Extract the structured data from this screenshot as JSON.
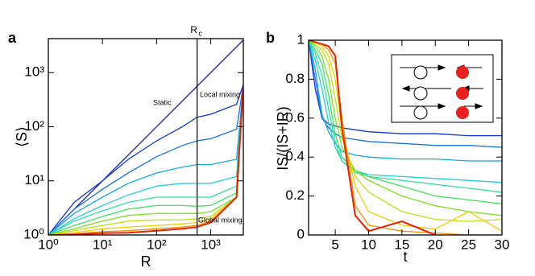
{
  "chart_data": [
    {
      "type": "line",
      "panel_label": "a",
      "xlabel": "R",
      "ylabel": "⟨S⟩",
      "xlog": true,
      "ylog": true,
      "xlim": [
        1,
        4000
      ],
      "ylim": [
        1,
        4250
      ],
      "xticks": [
        {
          "value": 1,
          "label": "10⁰"
        },
        {
          "value": 10,
          "label": "10¹"
        },
        {
          "value": 100,
          "label": "10²"
        },
        {
          "value": 1000,
          "label": "10³"
        }
      ],
      "yticks": [
        {
          "value": 1,
          "label": "10⁰"
        },
        {
          "value": 10,
          "label": "10¹"
        },
        {
          "value": 100,
          "label": "10²"
        },
        {
          "value": 1000,
          "label": "10³"
        }
      ],
      "vline": {
        "x": 560,
        "label": "R",
        "subscript": "c"
      },
      "annotations": [
        "Static",
        "Local mixing",
        "Global mixing"
      ],
      "x": [
        1,
        3,
        10,
        30,
        100,
        300,
        560,
        1000,
        3000,
        4000
      ],
      "series": [
        {
          "color": "#1c1ca8",
          "x": [
            1,
            4000
          ],
          "values": [
            1,
            4000
          ]
        },
        {
          "color": "#1034e0",
          "values": [
            1,
            4,
            10,
            25,
            55,
            100,
            150,
            170,
            260,
            600
          ]
        },
        {
          "color": "#1a70e8",
          "values": [
            1,
            3,
            7,
            14,
            28,
            45,
            55,
            60,
            90,
            600
          ]
        },
        {
          "color": "#10a8e8",
          "values": [
            1,
            2.5,
            5,
            9,
            14,
            18,
            20,
            20,
            25,
            600
          ]
        },
        {
          "color": "#20d0d0",
          "values": [
            1,
            2,
            3.5,
            5.5,
            8,
            9,
            9,
            9,
            12,
            600
          ]
        },
        {
          "color": "#30e0a0",
          "values": [
            1,
            1.8,
            2.8,
            4,
            5,
            5,
            5,
            5,
            8,
            600
          ]
        },
        {
          "color": "#40e060",
          "values": [
            1,
            1.5,
            2.2,
            3,
            3.5,
            3.5,
            3.4,
            3.5,
            6,
            600
          ]
        },
        {
          "color": "#80e020",
          "values": [
            1,
            1.3,
            1.8,
            2.3,
            2.5,
            2.5,
            2.5,
            2.7,
            5,
            600
          ]
        },
        {
          "color": "#c0e010",
          "values": [
            1,
            1.2,
            1.5,
            1.8,
            1.9,
            1.9,
            2,
            2.2,
            5,
            600
          ]
        },
        {
          "color": "#f0d000",
          "values": [
            1,
            1.1,
            1.3,
            1.4,
            1.5,
            1.6,
            1.7,
            2,
            5,
            600
          ]
        },
        {
          "color": "#f09000",
          "values": [
            1,
            1.05,
            1.15,
            1.2,
            1.3,
            1.4,
            1.5,
            1.8,
            5,
            600
          ]
        },
        {
          "color": "#e82000",
          "values": [
            1,
            1.02,
            1.08,
            1.1,
            1.2,
            1.3,
            1.4,
            1.7,
            5,
            600
          ]
        }
      ]
    },
    {
      "type": "line",
      "panel_label": "b",
      "xlabel": "t",
      "ylabel": "IS/(IS+IR)",
      "xlog": false,
      "ylog": false,
      "xlim": [
        1,
        30
      ],
      "ylim": [
        0,
        1
      ],
      "xticks": [
        5,
        10,
        15,
        20,
        25,
        30
      ],
      "yticks": [
        0,
        0.2,
        0.4,
        0.6,
        0.8,
        1
      ],
      "x": [
        1,
        2,
        3,
        4,
        5,
        6,
        8,
        10,
        15,
        20,
        25,
        30
      ],
      "series": [
        {
          "color": "#1034e0",
          "values": [
            1,
            0.75,
            0.6,
            0.57,
            0.56,
            0.55,
            0.54,
            0.53,
            0.52,
            0.52,
            0.51,
            0.51
          ]
        },
        {
          "color": "#1a70e8",
          "values": [
            1,
            0.8,
            0.6,
            0.55,
            0.52,
            0.5,
            0.49,
            0.48,
            0.47,
            0.46,
            0.46,
            0.45
          ]
        },
        {
          "color": "#10a8e8",
          "values": [
            1,
            0.85,
            0.62,
            0.53,
            0.47,
            0.43,
            0.41,
            0.4,
            0.39,
            0.39,
            0.38,
            0.38
          ]
        },
        {
          "color": "#20d0d0",
          "values": [
            1,
            0.9,
            0.75,
            0.58,
            0.45,
            0.38,
            0.33,
            0.31,
            0.3,
            0.29,
            0.28,
            0.27
          ]
        },
        {
          "color": "#30e0a0",
          "values": [
            1,
            0.93,
            0.82,
            0.65,
            0.48,
            0.38,
            0.32,
            0.3,
            0.28,
            0.26,
            0.24,
            0.22
          ]
        },
        {
          "color": "#40e060",
          "values": [
            1,
            0.95,
            0.88,
            0.72,
            0.52,
            0.4,
            0.33,
            0.3,
            0.25,
            0.2,
            0.18,
            0.16
          ]
        },
        {
          "color": "#80e020",
          "values": [
            1,
            0.97,
            0.92,
            0.8,
            0.6,
            0.45,
            0.33,
            0.28,
            0.2,
            0.15,
            0.12,
            0.1
          ]
        },
        {
          "color": "#c0e010",
          "values": [
            1,
            0.98,
            0.95,
            0.88,
            0.7,
            0.5,
            0.3,
            0.22,
            0.12,
            0.08,
            0.07,
            0.08
          ]
        },
        {
          "color": "#f0d000",
          "values": [
            1,
            0.99,
            0.97,
            0.92,
            0.8,
            0.55,
            0.25,
            0.12,
            0.05,
            0.03,
            0.12,
            0.02
          ]
        },
        {
          "color": "#f09000",
          "values": [
            1,
            0.99,
            0.98,
            0.95,
            0.88,
            0.6,
            0.15,
            0.05,
            0.02,
            0.01,
            0,
            0
          ]
        },
        {
          "color": "#e82000",
          "values": [
            1,
            0.99,
            0.98,
            0.97,
            0.92,
            0.55,
            0.1,
            0.02,
            0.07,
            0,
            null,
            null
          ]
        }
      ]
    }
  ]
}
